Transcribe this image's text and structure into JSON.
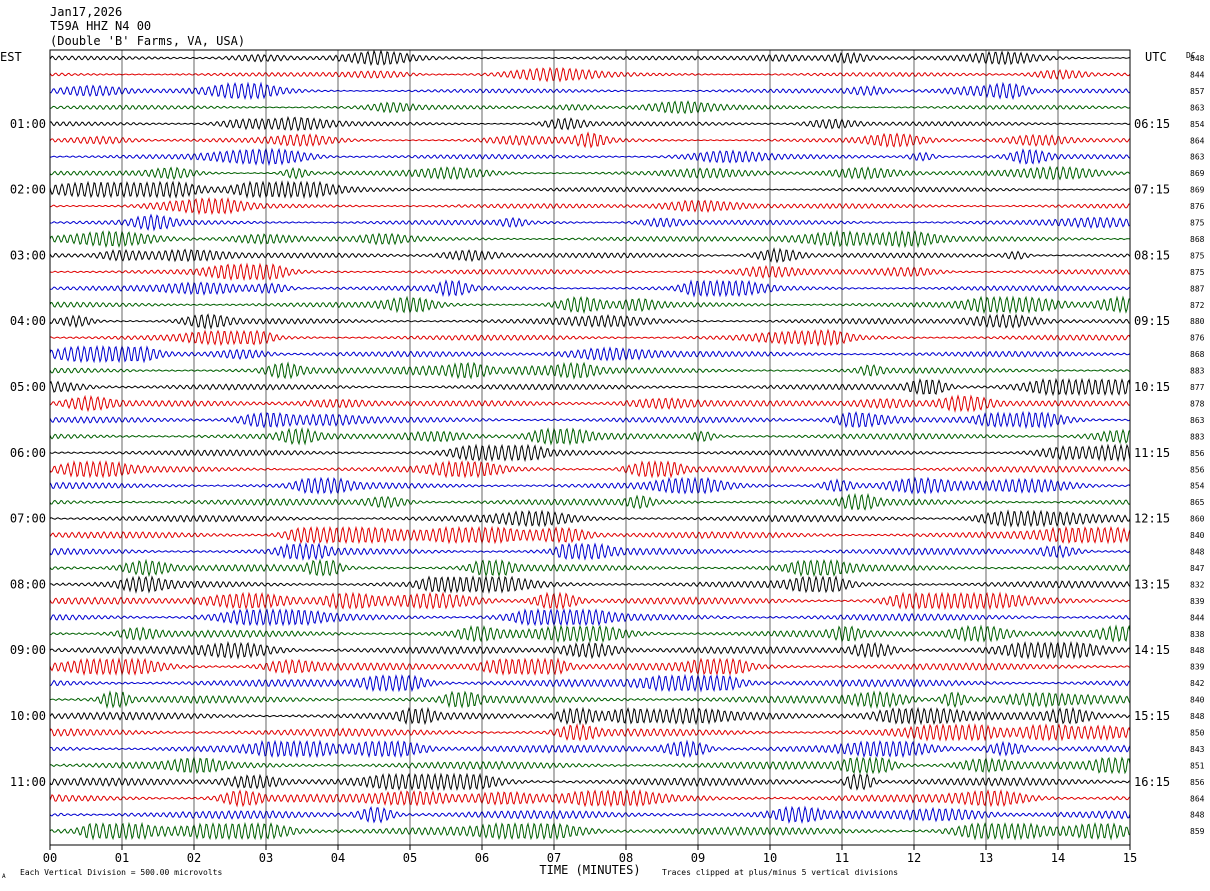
{
  "header": {
    "date": "Jan17,2026",
    "station": "T59A HHZ N4 00",
    "location": "(Double 'B' Farms, VA, USA)"
  },
  "labels": {
    "left_tz": "EST",
    "right_tz": "UTC",
    "dc": "DC",
    "x_axis": "TIME (MINUTES)",
    "footer_left": "Each Vertical Division =  500.00 microvolts",
    "footer_right": "Traces clipped at plus/minus 5 vertical divisions",
    "corner_mark": "A"
  },
  "colors": {
    "trace_cycle": [
      "#000000",
      "#e00000",
      "#0000d0",
      "#006000"
    ],
    "grid": "#000000",
    "background": "#ffffff"
  },
  "chart_data": {
    "type": "line",
    "subtype": "helicorder",
    "title": "T59A HHZ N4 00",
    "xlabel": "TIME (MINUTES)",
    "x_ticks": [
      "00",
      "01",
      "02",
      "03",
      "04",
      "05",
      "06",
      "07",
      "08",
      "09",
      "10",
      "11",
      "12",
      "13",
      "14",
      "15"
    ],
    "xlim": [
      0,
      15
    ],
    "left_hour_labels": [
      "01:00",
      "02:00",
      "03:00",
      "04:00",
      "05:00",
      "06:00",
      "07:00",
      "08:00",
      "09:00",
      "10:00",
      "11:00"
    ],
    "right_hour_labels": [
      "06:15",
      "07:15",
      "08:15",
      "09:15",
      "10:15",
      "11:15",
      "12:15",
      "13:15",
      "14:15",
      "15:15",
      "16:15"
    ],
    "trace_dc_offsets": [
      848,
      844,
      857,
      863,
      854,
      864,
      863,
      869,
      869,
      876,
      875,
      868,
      875,
      875,
      887,
      872,
      880,
      876,
      868,
      883,
      877,
      878,
      863,
      883,
      856,
      856,
      854,
      865,
      860,
      840,
      848,
      847,
      832,
      839,
      844,
      838,
      848,
      839,
      842,
      840,
      848,
      850,
      843,
      851,
      856,
      864,
      848,
      859
    ],
    "grid": true
  }
}
